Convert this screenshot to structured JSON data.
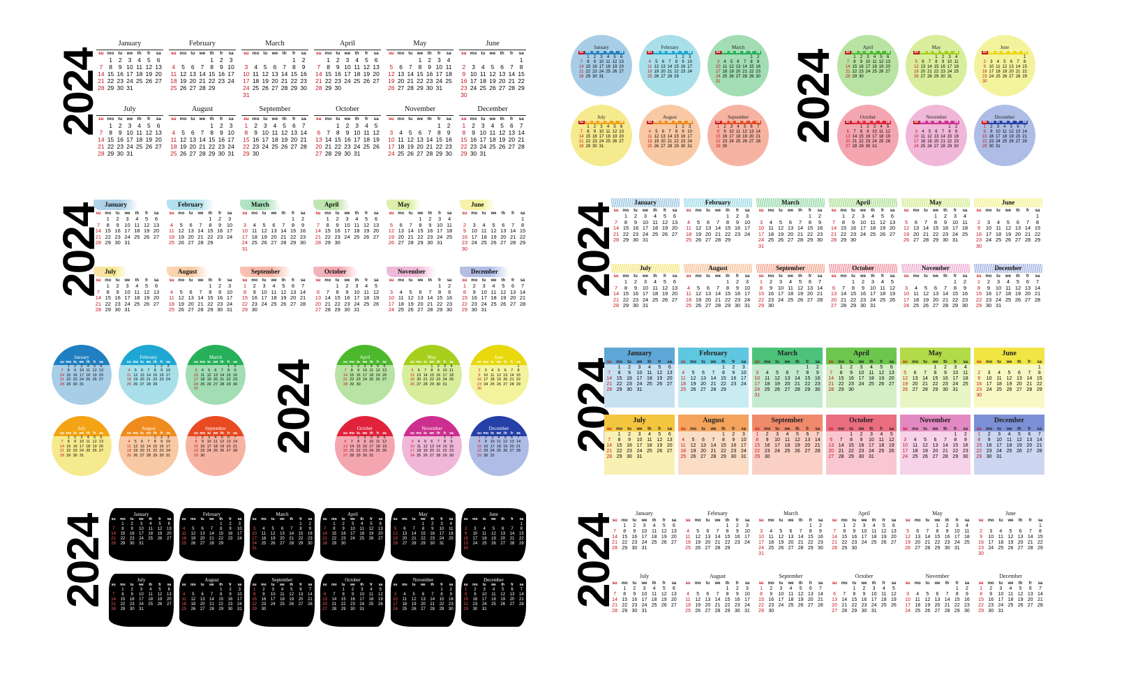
{
  "year": "2024",
  "weekdays": [
    "su",
    "mo",
    "tu",
    "we",
    "th",
    "fr",
    "sa"
  ],
  "months": [
    {
      "name": "January",
      "offset": 1,
      "days": 31
    },
    {
      "name": "February",
      "offset": 4,
      "days": 29
    },
    {
      "name": "March",
      "offset": 5,
      "days": 31
    },
    {
      "name": "April",
      "offset": 1,
      "days": 30
    },
    {
      "name": "May",
      "offset": 3,
      "days": 31
    },
    {
      "name": "June",
      "offset": 6,
      "days": 30
    },
    {
      "name": "July",
      "offset": 1,
      "days": 31
    },
    {
      "name": "August",
      "offset": 4,
      "days": 31
    },
    {
      "name": "September",
      "offset": 0,
      "days": 30
    },
    {
      "name": "October",
      "offset": 2,
      "days": 31
    },
    {
      "name": "November",
      "offset": 5,
      "days": 30
    },
    {
      "name": "December",
      "offset": 0,
      "days": 31
    }
  ],
  "palette_light": [
    "#a8cde6",
    "#a9dfe9",
    "#a2ddb3",
    "#b8e3a2",
    "#d8ee9c",
    "#f4f39d",
    "#f6ea8e",
    "#f8c9a4",
    "#f6b3a2",
    "#f4a6b0",
    "#f0b7d8",
    "#aebde6"
  ],
  "palette_strong": [
    "#1f7fc0",
    "#1fa7d3",
    "#27b05a",
    "#4cb82c",
    "#a5cf1c",
    "#e8d80c",
    "#f3a313",
    "#f08b1e",
    "#e84a22",
    "#e0233b",
    "#cc2f8f",
    "#2540a7"
  ],
  "palette_block_head": [
    "#5fa7d6",
    "#5fc7df",
    "#4dc27a",
    "#6dc64e",
    "#b3da48",
    "#f0e543",
    "#f4c53f",
    "#f4a45c",
    "#ef8a6a",
    "#ea6e80",
    "#e389c2",
    "#7c90d6"
  ],
  "palette_block_body": [
    "#c7e0f2",
    "#c9ecf3",
    "#c5ead0",
    "#d4eec6",
    "#e8f5c4",
    "#f8f8c4",
    "#f9f0b4",
    "#fbddc6",
    "#fad0c5",
    "#f9c7cf",
    "#f6d3e9",
    "#ccd6f1"
  ],
  "sunday_color": "#c5121a"
}
